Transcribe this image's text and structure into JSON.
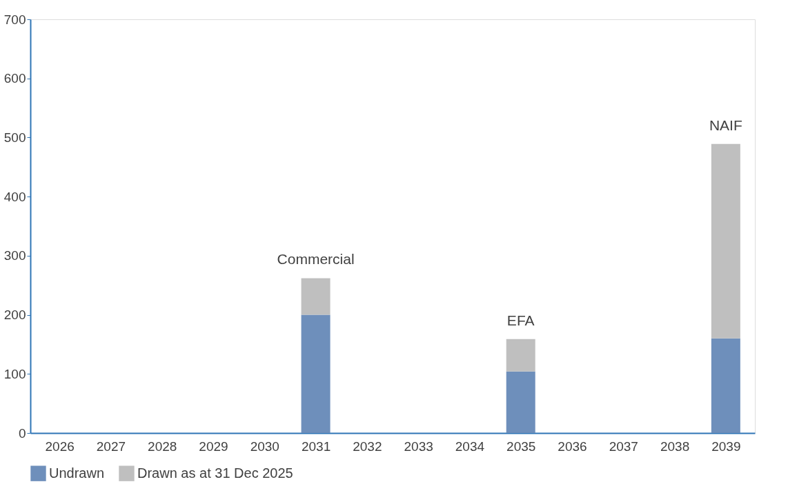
{
  "chart_data": {
    "type": "bar",
    "stacked": true,
    "categories": [
      "2026",
      "2027",
      "2028",
      "2029",
      "2030",
      "2031",
      "2032",
      "2033",
      "2034",
      "2035",
      "2036",
      "2037",
      "2038",
      "2039"
    ],
    "series": [
      {
        "name": "Undrawn",
        "color": "#6e8fbb",
        "values": [
          0,
          0,
          0,
          0,
          0,
          200,
          0,
          0,
          0,
          104,
          0,
          0,
          0,
          160
        ]
      },
      {
        "name": "Drawn as at 31 Dec 2025",
        "color": "#bfbfbf",
        "values": [
          0,
          0,
          0,
          0,
          0,
          62,
          0,
          0,
          0,
          55,
          0,
          0,
          0,
          329
        ]
      }
    ],
    "ylim": [
      0,
      700
    ],
    "yticks": [
      0,
      100,
      200,
      300,
      400,
      500,
      600,
      700
    ],
    "grid": false,
    "legend": "bottom",
    "annotations": [
      {
        "text": "Commercial",
        "x": "2031",
        "y": 262
      },
      {
        "text": "EFA",
        "x": "2035",
        "y": 159
      },
      {
        "text": "NAIF",
        "x": "2039",
        "y": 489
      }
    ]
  }
}
